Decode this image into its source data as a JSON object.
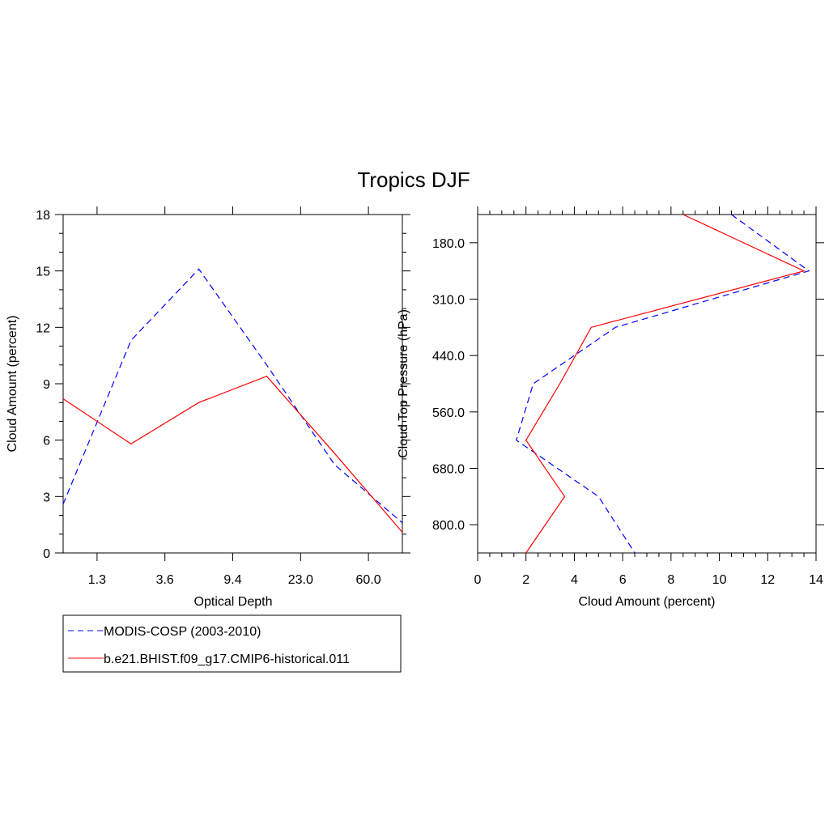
{
  "chart_data": [
    {
      "type": "line",
      "title": "Tropics DJF",
      "xlabel": "Optical Depth",
      "ylabel": "Cloud Amount (percent)",
      "x_tick_labels": [
        "1.3",
        "3.6",
        "9.4",
        "23.0",
        "60.0"
      ],
      "y_tick_labels": [
        "0",
        "3",
        "6",
        "9",
        "12",
        "15",
        "18"
      ],
      "ylim": [
        0,
        18
      ],
      "x_bins": 6,
      "series": [
        {
          "name": "MODIS-COSP (2003-2010)",
          "color": "#0000ff",
          "dash": true,
          "values": [
            2.6,
            11.3,
            15.1,
            10.0,
            4.7,
            1.6
          ]
        },
        {
          "name": "b.e21.BHIST.f09_g17.CMIP6-historical.011",
          "color": "#ff0000",
          "dash": false,
          "values": [
            8.2,
            5.8,
            8.0,
            9.4,
            5.3,
            1.1
          ]
        }
      ]
    },
    {
      "type": "line",
      "xlabel": "Cloud Amount (percent)",
      "ylabel": "Cloud Top Pressure (hPa)",
      "x_tick_labels": [
        "0",
        "2",
        "4",
        "6",
        "8",
        "10",
        "12",
        "14"
      ],
      "xlim": [
        0,
        14
      ],
      "y_tick_labels": [
        "180.0",
        "310.0",
        "440.0",
        "560.0",
        "680.0",
        "800.0"
      ],
      "y_bins": 7,
      "series": [
        {
          "name": "MODIS-COSP (2003-2010)",
          "color": "#0000ff",
          "dash": true,
          "values": [
            10.5,
            13.7,
            5.7,
            2.3,
            1.6,
            5.0,
            6.5
          ]
        },
        {
          "name": "b.e21.BHIST.f09_g17.CMIP6-historical.011",
          "color": "#ff0000",
          "dash": false,
          "values": [
            8.5,
            13.5,
            4.7,
            3.4,
            2.0,
            3.6,
            2.0
          ]
        }
      ]
    }
  ],
  "legend": {
    "items": [
      "MODIS-COSP (2003-2010)",
      "b.e21.BHIST.f09_g17.CMIP6-historical.011"
    ]
  }
}
